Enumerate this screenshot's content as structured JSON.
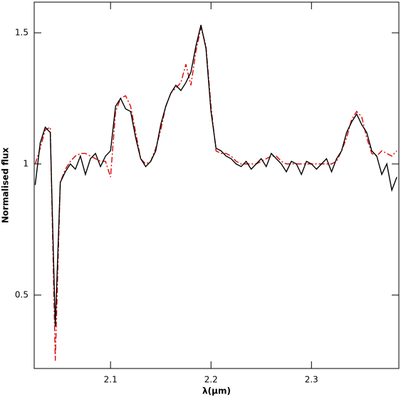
{
  "chart_data": {
    "type": "line",
    "xlabel": "λ(μm)",
    "ylabel": "Normalised flux",
    "x": [
      2.025,
      2.03,
      2.035,
      2.04,
      2.045,
      2.05,
      2.055,
      2.06,
      2.065,
      2.07,
      2.075,
      2.08,
      2.085,
      2.09,
      2.095,
      2.1,
      2.105,
      2.11,
      2.115,
      2.12,
      2.125,
      2.13,
      2.135,
      2.14,
      2.145,
      2.15,
      2.155,
      2.16,
      2.165,
      2.17,
      2.175,
      2.18,
      2.185,
      2.19,
      2.195,
      2.2,
      2.205,
      2.21,
      2.215,
      2.22,
      2.225,
      2.23,
      2.235,
      2.24,
      2.245,
      2.25,
      2.255,
      2.26,
      2.265,
      2.27,
      2.275,
      2.28,
      2.285,
      2.29,
      2.295,
      2.3,
      2.305,
      2.31,
      2.315,
      2.32,
      2.325,
      2.33,
      2.335,
      2.34,
      2.345,
      2.35,
      2.355,
      2.36,
      2.365,
      2.37,
      2.375,
      2.38,
      2.385
    ],
    "series": [
      {
        "color": "#000000",
        "dash": "solid",
        "values": [
          0.92,
          1.08,
          1.14,
          1.12,
          0.38,
          0.93,
          0.97,
          1.0,
          0.98,
          1.03,
          0.96,
          1.02,
          1.04,
          0.99,
          1.03,
          1.05,
          1.22,
          1.25,
          1.21,
          1.2,
          1.1,
          1.02,
          0.99,
          1.01,
          1.05,
          1.15,
          1.22,
          1.27,
          1.3,
          1.28,
          1.31,
          1.35,
          1.45,
          1.53,
          1.44,
          1.2,
          1.06,
          1.05,
          1.03,
          1.02,
          1.0,
          0.99,
          1.01,
          0.98,
          1.0,
          1.02,
          0.99,
          1.04,
          1.02,
          1.0,
          0.97,
          1.01,
          1.0,
          0.96,
          1.01,
          1.0,
          0.98,
          1.0,
          1.02,
          0.97,
          1.02,
          1.05,
          1.12,
          1.16,
          1.19,
          1.15,
          1.12,
          1.05,
          1.03,
          0.96,
          1.0,
          0.9,
          0.95
        ]
      },
      {
        "color": "#e00000",
        "dash": "dashdot",
        "values": [
          1.0,
          1.06,
          1.13,
          1.14,
          0.25,
          0.93,
          0.98,
          1.01,
          1.03,
          1.04,
          1.04,
          1.03,
          1.02,
          1.01,
          1.01,
          0.95,
          1.2,
          1.25,
          1.26,
          1.22,
          1.12,
          1.02,
          1.0,
          1.01,
          1.06,
          1.13,
          1.22,
          1.27,
          1.29,
          1.31,
          1.38,
          1.3,
          1.43,
          1.52,
          1.45,
          1.22,
          1.05,
          1.04,
          1.04,
          1.03,
          1.01,
          1.0,
          1.0,
          1.0,
          1.0,
          1.01,
          1.02,
          1.03,
          1.03,
          1.01,
          1.0,
          1.0,
          1.0,
          1.0,
          1.0,
          1.0,
          1.0,
          1.0,
          1.0,
          1.0,
          1.01,
          1.05,
          1.1,
          1.17,
          1.2,
          1.18,
          1.1,
          1.04,
          1.03,
          1.05,
          1.04,
          1.03,
          1.05
        ]
      }
    ],
    "xlim": [
      2.024,
      2.387
    ],
    "ylim": [
      0.22,
      1.617
    ],
    "xticks": [
      2.1,
      2.2,
      2.3
    ],
    "yticks": [
      0.5,
      1,
      1.5
    ],
    "grid": false
  }
}
